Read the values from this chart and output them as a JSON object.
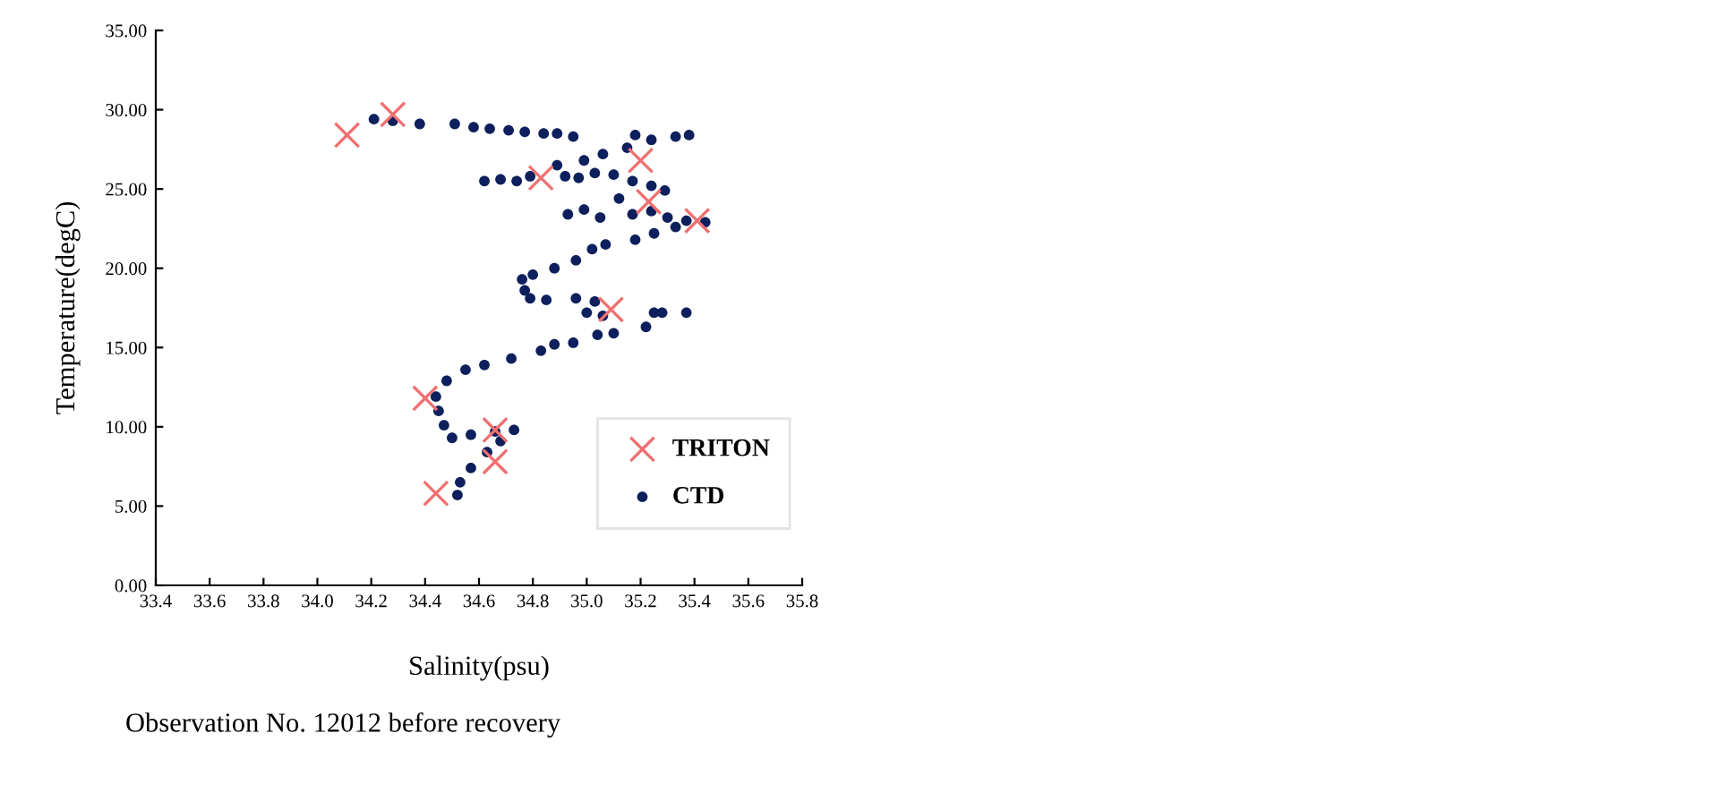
{
  "chart_data": {
    "type": "scatter",
    "xlabel": "Salinity(psu)",
    "ylabel": "Temperature(degC)",
    "annotations": [
      "Observation No. 12012 before recovery"
    ],
    "xlim": [
      33.4,
      35.8
    ],
    "ylim": [
      0,
      35
    ],
    "xticks": [
      {
        "value": 33.4,
        "label": "33.4"
      },
      {
        "value": 33.6,
        "label": "33.6"
      },
      {
        "value": 33.8,
        "label": "33.8"
      },
      {
        "value": 34.0,
        "label": "34.0"
      },
      {
        "value": 34.2,
        "label": "34.2"
      },
      {
        "value": 34.4,
        "label": "34.4"
      },
      {
        "value": 34.6,
        "label": "34.6"
      },
      {
        "value": 34.8,
        "label": "34.8"
      },
      {
        "value": 35.0,
        "label": "35.0"
      },
      {
        "value": 35.2,
        "label": "35.2"
      },
      {
        "value": 35.4,
        "label": "35.4"
      },
      {
        "value": 35.6,
        "label": "35.6"
      },
      {
        "value": 35.8,
        "label": "35.8"
      }
    ],
    "yticks": [
      {
        "value": 0,
        "label": "0.00"
      },
      {
        "value": 5,
        "label": "5.00"
      },
      {
        "value": 10,
        "label": "10.00"
      },
      {
        "value": 15,
        "label": "15.00"
      },
      {
        "value": 20,
        "label": "20.00"
      },
      {
        "value": 25,
        "label": "25.00"
      },
      {
        "value": 30,
        "label": "30.00"
      },
      {
        "value": 35,
        "label": "35.00"
      }
    ],
    "grid": false,
    "legend": "bottom right",
    "series": [
      {
        "name": "TRITON",
        "color": "#f07070",
        "marker": "cross",
        "x": [
          34.11,
          34.28,
          34.83,
          35.2,
          35.23,
          35.41,
          35.09,
          34.4,
          34.66,
          34.66,
          34.44
        ],
        "values": [
          28.4,
          29.7,
          25.7,
          26.8,
          24.2,
          23.0,
          17.4,
          11.8,
          9.8,
          7.8,
          5.8
        ]
      },
      {
        "name": "CTD",
        "color": "#0d1f5c",
        "marker": "circle",
        "x": [
          34.21,
          34.28,
          34.38,
          34.51,
          34.58,
          34.64,
          34.71,
          34.77,
          34.84,
          34.89,
          34.95,
          35.18,
          35.38,
          35.33,
          35.24,
          35.15,
          35.06,
          34.99,
          34.89,
          34.62,
          34.68,
          34.74,
          34.79,
          34.92,
          34.97,
          35.03,
          35.1,
          35.17,
          35.24,
          35.29,
          34.93,
          34.99,
          35.05,
          35.12,
          35.17,
          35.24,
          35.3,
          35.37,
          35.44,
          35.33,
          35.25,
          35.18,
          35.07,
          35.02,
          34.96,
          34.88,
          34.8,
          34.76,
          34.77,
          34.79,
          34.85,
          34.96,
          35.03,
          35.0,
          35.06,
          35.25,
          35.28,
          35.37,
          35.22,
          35.1,
          35.04,
          34.95,
          34.88,
          34.83,
          34.72,
          34.62,
          34.55,
          34.48,
          34.44,
          34.45,
          34.47,
          34.5,
          34.57,
          34.66,
          34.73,
          34.68,
          34.63,
          34.57,
          34.53,
          34.52
        ],
        "values": [
          29.4,
          29.3,
          29.1,
          29.1,
          28.9,
          28.8,
          28.7,
          28.6,
          28.5,
          28.5,
          28.3,
          28.4,
          28.4,
          28.3,
          28.1,
          27.6,
          27.2,
          26.8,
          26.5,
          25.5,
          25.6,
          25.5,
          25.8,
          25.8,
          25.7,
          26.0,
          25.9,
          25.5,
          25.2,
          24.9,
          23.4,
          23.7,
          23.2,
          24.4,
          23.4,
          23.6,
          23.2,
          23.0,
          22.9,
          22.6,
          22.2,
          21.8,
          21.5,
          21.2,
          20.5,
          20.0,
          19.6,
          19.3,
          18.6,
          18.1,
          18.0,
          18.1,
          17.9,
          17.2,
          17.0,
          17.2,
          17.2,
          17.2,
          16.3,
          15.9,
          15.8,
          15.3,
          15.2,
          14.8,
          14.3,
          13.9,
          13.6,
          12.9,
          11.9,
          11.0,
          10.1,
          9.3,
          9.5,
          9.7,
          9.8,
          9.1,
          8.4,
          7.4,
          6.5,
          5.7
        ]
      }
    ]
  }
}
